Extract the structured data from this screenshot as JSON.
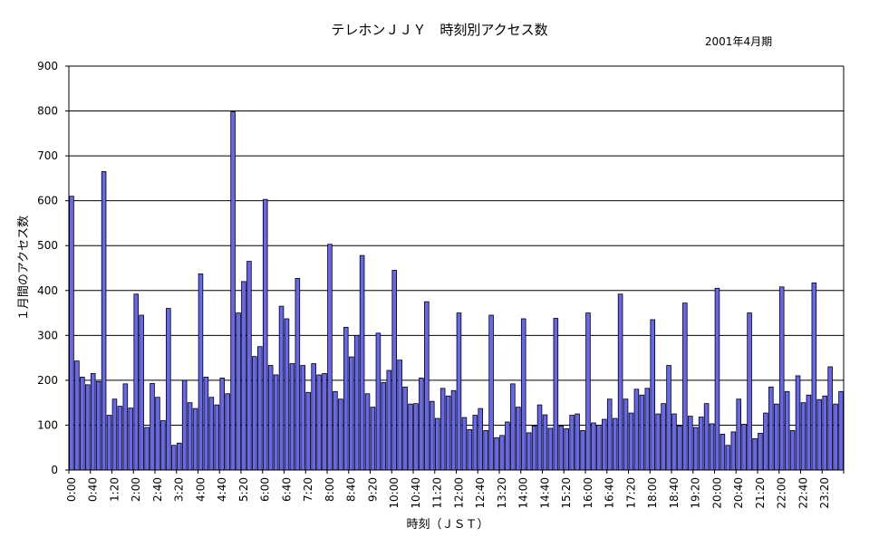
{
  "chart_data": {
    "type": "bar",
    "title": "テレホンＪＪＹ　時刻別アクセス数",
    "subtitle": "2001年4月期",
    "xlabel": "時刻（ＪＳＴ）",
    "ylabel": "１月間のアクセス数",
    "ylim": [
      0,
      900
    ],
    "yticks": [
      0,
      100,
      200,
      300,
      400,
      500,
      600,
      700,
      800,
      900
    ],
    "grid": true,
    "legend": "none",
    "bar_color": "#6666ee",
    "categories": [
      "0:00",
      "0:10",
      "0:20",
      "0:30",
      "0:40",
      "0:50",
      "1:00",
      "1:10",
      "1:20",
      "1:30",
      "1:40",
      "1:50",
      "2:00",
      "2:10",
      "2:20",
      "2:30",
      "2:40",
      "2:50",
      "3:00",
      "3:10",
      "3:20",
      "3:30",
      "3:40",
      "3:50",
      "4:00",
      "4:10",
      "4:20",
      "4:30",
      "4:40",
      "4:50",
      "5:00",
      "5:10",
      "5:20",
      "5:30",
      "5:40",
      "5:50",
      "6:00",
      "6:10",
      "6:20",
      "6:30",
      "6:40",
      "6:50",
      "7:00",
      "7:10",
      "7:20",
      "7:30",
      "7:40",
      "7:50",
      "8:00",
      "8:10",
      "8:20",
      "8:30",
      "8:40",
      "8:50",
      "9:00",
      "9:10",
      "9:20",
      "9:30",
      "9:40",
      "9:50",
      "10:00",
      "10:10",
      "10:20",
      "10:30",
      "10:40",
      "10:50",
      "11:00",
      "11:10",
      "11:20",
      "11:30",
      "11:40",
      "11:50",
      "12:00",
      "12:10",
      "12:20",
      "12:30",
      "12:40",
      "12:50",
      "13:00",
      "13:10",
      "13:20",
      "13:30",
      "13:40",
      "13:50",
      "14:00",
      "14:10",
      "14:20",
      "14:30",
      "14:40",
      "14:50",
      "15:00",
      "15:10",
      "15:20",
      "15:30",
      "15:40",
      "15:50",
      "16:00",
      "16:10",
      "16:20",
      "16:30",
      "16:40",
      "16:50",
      "17:00",
      "17:10",
      "17:20",
      "17:30",
      "17:40",
      "17:50",
      "18:00",
      "18:10",
      "18:20",
      "18:30",
      "18:40",
      "18:50",
      "19:00",
      "19:10",
      "19:20",
      "19:30",
      "19:40",
      "19:50",
      "20:00",
      "20:10",
      "20:20",
      "20:30",
      "20:40",
      "20:50",
      "21:00",
      "21:10",
      "21:20",
      "21:30",
      "21:40",
      "21:50",
      "22:00",
      "22:10",
      "22:20",
      "22:30",
      "22:40",
      "22:50",
      "23:00",
      "23:10",
      "23:20",
      "23:30",
      "23:40",
      "23:50"
    ],
    "xtick_labels": [
      "0:00",
      "0:40",
      "1:20",
      "2:00",
      "2:40",
      "3:20",
      "4:00",
      "4:40",
      "5:20",
      "6:00",
      "6:40",
      "7:20",
      "8:00",
      "8:40",
      "9:20",
      "10:00",
      "10:40",
      "11:20",
      "12:00",
      "12:40",
      "13:20",
      "14:00",
      "14:40",
      "15:20",
      "16:00",
      "16:40",
      "17:20",
      "18:00",
      "18:40",
      "19:20",
      "20:00",
      "20:40",
      "21:20",
      "22:00",
      "22:40",
      "23:20"
    ],
    "values": [
      610,
      243,
      207,
      190,
      215,
      197,
      665,
      122,
      158,
      142,
      192,
      138,
      392,
      345,
      95,
      193,
      162,
      110,
      360,
      55,
      60,
      200,
      150,
      137,
      437,
      207,
      162,
      145,
      205,
      170,
      798,
      350,
      420,
      465,
      253,
      275,
      603,
      233,
      212,
      365,
      337,
      237,
      427,
      233,
      173,
      237,
      212,
      215,
      503,
      175,
      158,
      318,
      252,
      300,
      478,
      170,
      140,
      305,
      195,
      222,
      445,
      245,
      185,
      147,
      148,
      205,
      375,
      153,
      115,
      182,
      165,
      177,
      350,
      117,
      90,
      122,
      137,
      88,
      345,
      72,
      77,
      107,
      192,
      140,
      337,
      83,
      98,
      145,
      123,
      93,
      338,
      98,
      92,
      122,
      125,
      88,
      350,
      105,
      100,
      113,
      158,
      115,
      392,
      158,
      127,
      180,
      167,
      182,
      335,
      125,
      148,
      233,
      125,
      98,
      372,
      120,
      95,
      118,
      148,
      103,
      405,
      80,
      55,
      85,
      158,
      102,
      350,
      70,
      82,
      127,
      185,
      147,
      408,
      175,
      88,
      210,
      150,
      167,
      417,
      157,
      165,
      230,
      147,
      175
    ]
  }
}
